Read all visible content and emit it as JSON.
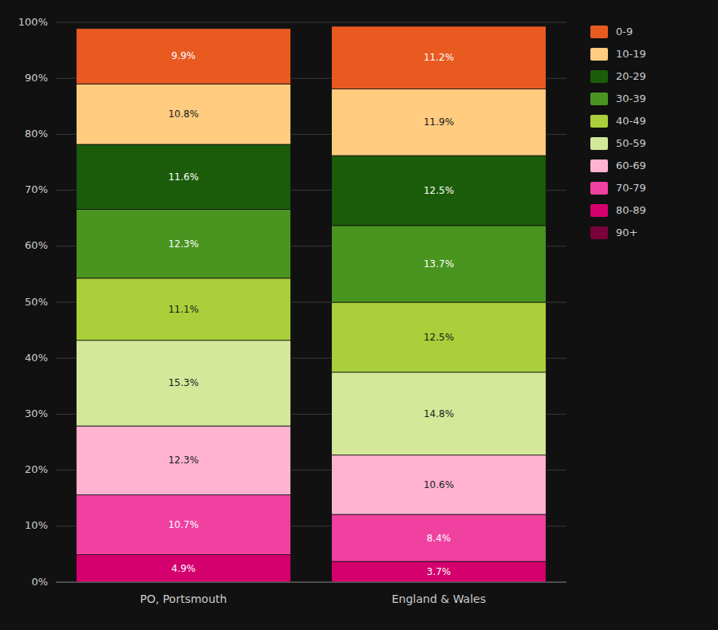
{
  "chart_data": {
    "type": "bar",
    "stacked": true,
    "data_labels": true,
    "grid": true,
    "legend": "right",
    "categories": [
      "PO, Portsmouth",
      "England & Wales"
    ],
    "ylim": [
      0,
      100
    ],
    "yticks": [
      {
        "value": 0,
        "label": "0%"
      },
      {
        "value": 10,
        "label": "10%"
      },
      {
        "value": 20,
        "label": "20%"
      },
      {
        "value": 30,
        "label": "30%"
      },
      {
        "value": 40,
        "label": "40%"
      },
      {
        "value": 50,
        "label": "50%"
      },
      {
        "value": 60,
        "label": "60%"
      },
      {
        "value": 70,
        "label": "70%"
      },
      {
        "value": 80,
        "label": "80%"
      },
      {
        "value": 90,
        "label": "90%"
      },
      {
        "value": 100,
        "label": "100%"
      }
    ],
    "series": [
      {
        "name": "90+",
        "color": "#7a003c",
        "values": [
          0.0,
          0.0
        ],
        "value_labels": [
          null,
          null
        ]
      },
      {
        "name": "80-89",
        "color": "#d4006e",
        "values": [
          4.9,
          3.7
        ],
        "value_labels": [
          "4.9%",
          "3.7%"
        ]
      },
      {
        "name": "70-79",
        "color": "#f040a0",
        "values": [
          10.7,
          8.4
        ],
        "value_labels": [
          "10.7%",
          "8.4%"
        ]
      },
      {
        "name": "60-69",
        "color": "#ffb3d0",
        "values": [
          12.3,
          10.6
        ],
        "value_labels": [
          "12.3%",
          "10.6%"
        ]
      },
      {
        "name": "50-59",
        "color": "#d4e89a",
        "values": [
          15.3,
          14.8
        ],
        "value_labels": [
          "15.3%",
          "14.8%"
        ]
      },
      {
        "name": "40-49",
        "color": "#aacf3a",
        "values": [
          11.1,
          12.5
        ],
        "value_labels": [
          "11.1%",
          "12.5%"
        ]
      },
      {
        "name": "30-39",
        "color": "#4a9420",
        "values": [
          12.3,
          13.7
        ],
        "value_labels": [
          "12.3%",
          "13.7%"
        ]
      },
      {
        "name": "20-29",
        "color": "#1a5c0a",
        "values": [
          11.6,
          12.5
        ],
        "value_labels": [
          "11.6%",
          "12.5%"
        ]
      },
      {
        "name": "10-19",
        "color": "#ffcc80",
        "values": [
          10.8,
          11.9
        ],
        "value_labels": [
          "10.8%",
          "11.9%"
        ]
      },
      {
        "name": "0-9",
        "color": "#e85a20",
        "values": [
          9.9,
          11.2
        ],
        "value_labels": [
          "9.9%",
          "11.2%"
        ]
      }
    ]
  }
}
